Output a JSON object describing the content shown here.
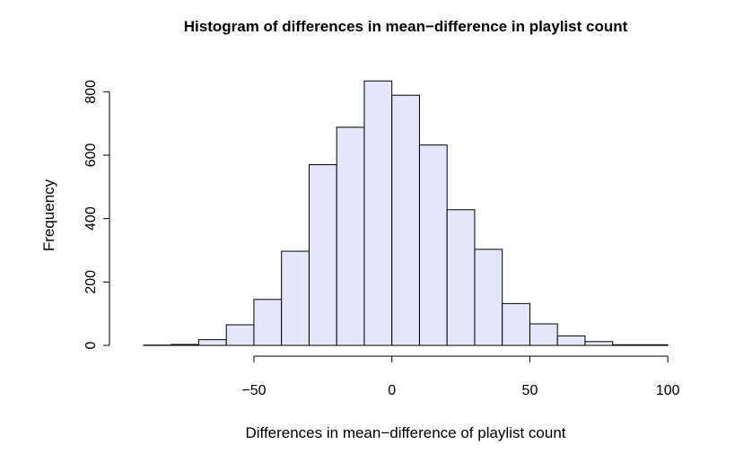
{
  "chart_data": {
    "type": "bar",
    "title": "Histogram of differences in mean−difference in playlist count",
    "xlabel": "Differences in mean−difference of playlist count",
    "ylabel": "Frequency",
    "bar_color": "#e6e6fa",
    "edge_color": "#000000",
    "bin_width": 10,
    "bins": [
      {
        "start": -90,
        "end": -80,
        "count": 1
      },
      {
        "start": -80,
        "end": -70,
        "count": 3
      },
      {
        "start": -70,
        "end": -60,
        "count": 18
      },
      {
        "start": -60,
        "end": -50,
        "count": 65
      },
      {
        "start": -50,
        "end": -40,
        "count": 145
      },
      {
        "start": -40,
        "end": -30,
        "count": 297
      },
      {
        "start": -30,
        "end": -20,
        "count": 570
      },
      {
        "start": -20,
        "end": -10,
        "count": 688
      },
      {
        "start": -10,
        "end": 0,
        "count": 834
      },
      {
        "start": 0,
        "end": 10,
        "count": 789
      },
      {
        "start": 10,
        "end": 20,
        "count": 632
      },
      {
        "start": 20,
        "end": 30,
        "count": 428
      },
      {
        "start": 30,
        "end": 40,
        "count": 303
      },
      {
        "start": 40,
        "end": 50,
        "count": 132
      },
      {
        "start": 50,
        "end": 60,
        "count": 68
      },
      {
        "start": 60,
        "end": 70,
        "count": 30
      },
      {
        "start": 70,
        "end": 80,
        "count": 12
      },
      {
        "start": 80,
        "end": 90,
        "count": 2
      },
      {
        "start": 90,
        "end": 100,
        "count": 2
      }
    ],
    "xlim": [
      -90,
      100
    ],
    "ylim": [
      0,
      850
    ],
    "x_ticks": [
      -50,
      0,
      50,
      100
    ],
    "x_tick_labels": [
      "−50",
      "0",
      "50",
      "100"
    ],
    "y_ticks": [
      0,
      200,
      400,
      600,
      800
    ],
    "y_tick_labels": [
      "0",
      "200",
      "400",
      "600",
      "800"
    ],
    "grid": false,
    "legend": "none"
  }
}
